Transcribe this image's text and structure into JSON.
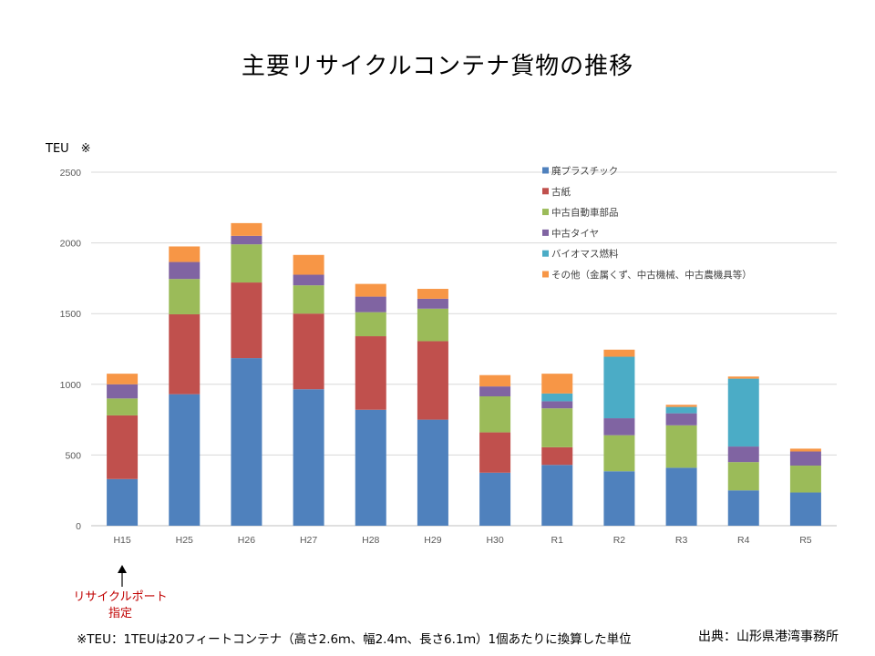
{
  "title": "主要リサイクルコンテナ貨物の推移",
  "unit_label": "TEU　※",
  "annotation": {
    "line1": "リサイクルポート",
    "line2": "指定"
  },
  "footnote": "※TEU：1TEUは20フィートコンテナ（高さ2.6ｍ、幅2.4ｍ、長さ6.1ｍ）1個あたりに換算した単位",
  "source": "出典：山形県港湾事務所",
  "chart_data": {
    "type": "bar",
    "stacked": true,
    "title": "主要リサイクルコンテナ貨物の推移",
    "ylabel": "TEU　※",
    "ylim": [
      0,
      2500
    ],
    "yticks": [
      0,
      500,
      1000,
      1500,
      2000,
      2500
    ],
    "grid": true,
    "legend_position": "top-right",
    "categories": [
      "H15",
      "H25",
      "H26",
      "H27",
      "H28",
      "H29",
      "H30",
      "R1",
      "R2",
      "R3",
      "R4",
      "R5"
    ],
    "series": [
      {
        "name": "廃プラスチック",
        "color": "#4f81bd",
        "values": [
          330,
          930,
          1185,
          965,
          820,
          750,
          375,
          430,
          385,
          410,
          250,
          235
        ]
      },
      {
        "name": "古紙",
        "color": "#c0504d",
        "values": [
          450,
          565,
          535,
          535,
          520,
          555,
          285,
          125,
          0,
          0,
          0,
          0
        ]
      },
      {
        "name": "中古自動車部品",
        "color": "#9bbb59",
        "values": [
          120,
          250,
          270,
          200,
          170,
          230,
          255,
          275,
          255,
          300,
          200,
          190
        ]
      },
      {
        "name": "中古タイヤ",
        "color": "#8064a2",
        "values": [
          100,
          120,
          60,
          75,
          110,
          70,
          70,
          50,
          120,
          85,
          110,
          100
        ]
      },
      {
        "name": "バイオマス燃料",
        "color": "#4bacc6",
        "values": [
          0,
          0,
          0,
          0,
          0,
          0,
          0,
          55,
          435,
          45,
          480,
          0
        ]
      },
      {
        "name": "その他（金属くず、中古機械、中古農機具等）",
        "color": "#f79646",
        "values": [
          75,
          110,
          90,
          140,
          90,
          70,
          80,
          140,
          50,
          15,
          15,
          20
        ]
      }
    ]
  }
}
